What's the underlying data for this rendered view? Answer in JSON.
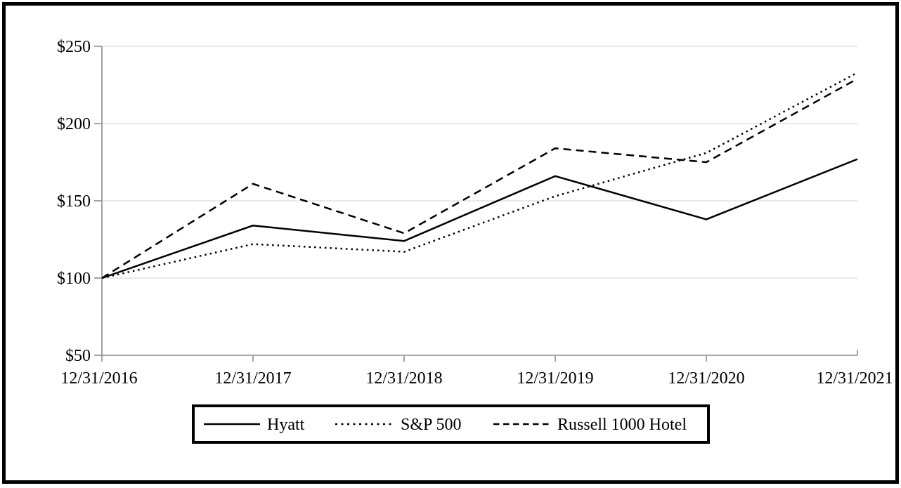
{
  "chart_data": {
    "type": "line",
    "title": "",
    "x_labels": [
      "12/31/2016",
      "12/31/2017",
      "12/31/2018",
      "12/31/2019",
      "12/31/2020",
      "12/31/2021"
    ],
    "y_tick_labels": [
      "$250",
      "$200",
      "$150",
      "$100",
      "$50"
    ],
    "y_tick_values": [
      250,
      200,
      150,
      100,
      50
    ],
    "ylim": [
      50,
      250
    ],
    "y_step": 50,
    "currency_prefix": "$",
    "grid": "horizontal-light",
    "legend_position": "bottom-boxed",
    "series": [
      {
        "name": "Hyatt",
        "line_style": "solid",
        "color": "#000000",
        "values": [
          100,
          134,
          124,
          166,
          138,
          177
        ]
      },
      {
        "name": "S&P 500",
        "line_style": "dotted",
        "color": "#000000",
        "values": [
          100,
          122,
          117,
          153,
          181,
          233
        ]
      },
      {
        "name": "Russell 1000 Hotel",
        "line_style": "dashed",
        "color": "#000000",
        "values": [
          100,
          161,
          129,
          184,
          175,
          229
        ]
      }
    ],
    "colors": {
      "line": "#000000",
      "axis": "#8e8e8e",
      "gridline": "#d9d9d9",
      "text": "#000000",
      "frame_border": "#000000"
    }
  }
}
